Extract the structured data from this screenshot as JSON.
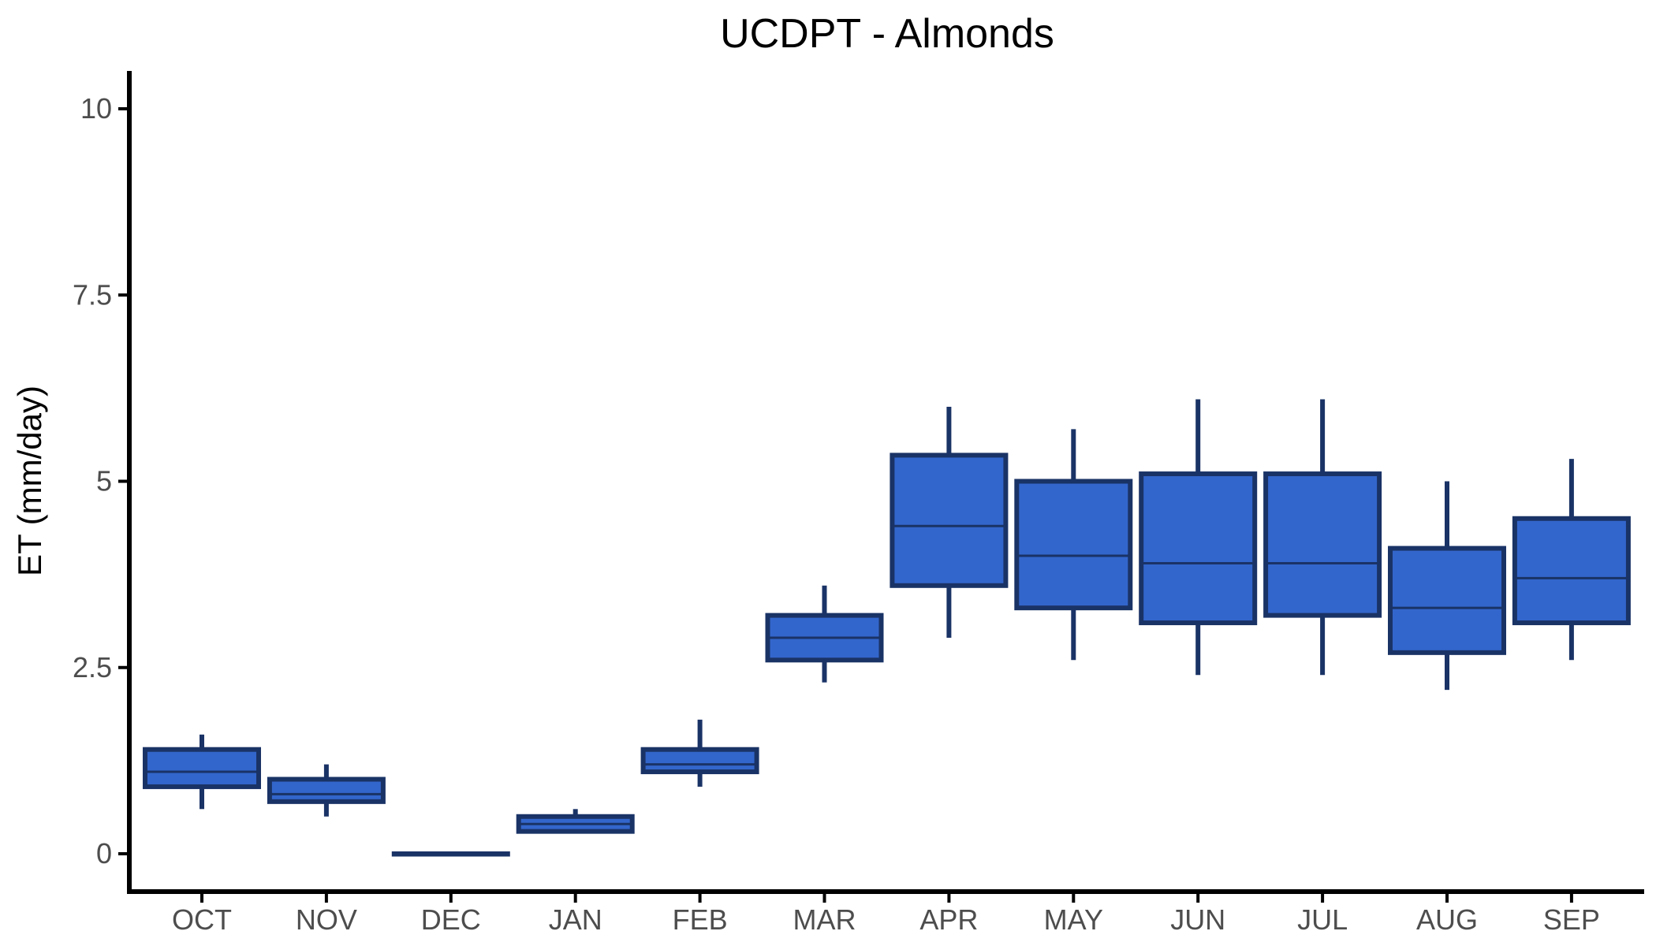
{
  "chart_data": {
    "type": "boxplot",
    "title": "UCDPT - Almonds",
    "xlabel": "",
    "ylabel": "ET (mm/day)",
    "ylim": [
      -0.5,
      10.5
    ],
    "yticks": [
      0,
      2.5,
      5,
      7.5,
      10
    ],
    "ytick_labels": [
      "0",
      "2.5",
      "5",
      "7.5",
      "10"
    ],
    "grid": false,
    "legend": "none",
    "colors": {
      "fill": "#3366cc",
      "stroke": "#1a3366"
    },
    "categories": [
      "OCT",
      "NOV",
      "DEC",
      "JAN",
      "FEB",
      "MAR",
      "APR",
      "MAY",
      "JUN",
      "JUL",
      "AUG",
      "SEP"
    ],
    "boxes": [
      {
        "min": 0.6,
        "q1": 0.9,
        "median": 1.1,
        "q3": 1.4,
        "max": 1.6
      },
      {
        "min": 0.5,
        "q1": 0.7,
        "median": 0.8,
        "q3": 1.0,
        "max": 1.2
      },
      {
        "min": 0.0,
        "q1": 0.0,
        "median": 0.0,
        "q3": 0.0,
        "max": 0.0
      },
      {
        "min": 0.3,
        "q1": 0.3,
        "median": 0.4,
        "q3": 0.5,
        "max": 0.6
      },
      {
        "min": 0.9,
        "q1": 1.1,
        "median": 1.2,
        "q3": 1.4,
        "max": 1.8
      },
      {
        "min": 2.3,
        "q1": 2.6,
        "median": 2.9,
        "q3": 3.2,
        "max": 3.6
      },
      {
        "min": 2.9,
        "q1": 3.6,
        "median": 4.4,
        "q3": 5.35,
        "max": 6.0
      },
      {
        "min": 2.6,
        "q1": 3.3,
        "median": 4.0,
        "q3": 5.0,
        "max": 5.7
      },
      {
        "min": 2.4,
        "q1": 3.1,
        "median": 3.9,
        "q3": 5.1,
        "max": 6.1
      },
      {
        "min": 2.4,
        "q1": 3.2,
        "median": 3.9,
        "q3": 5.1,
        "max": 6.1
      },
      {
        "min": 2.2,
        "q1": 2.7,
        "median": 3.3,
        "q3": 4.1,
        "max": 5.0
      },
      {
        "min": 2.6,
        "q1": 3.1,
        "median": 3.7,
        "q3": 4.5,
        "max": 5.3
      }
    ]
  }
}
